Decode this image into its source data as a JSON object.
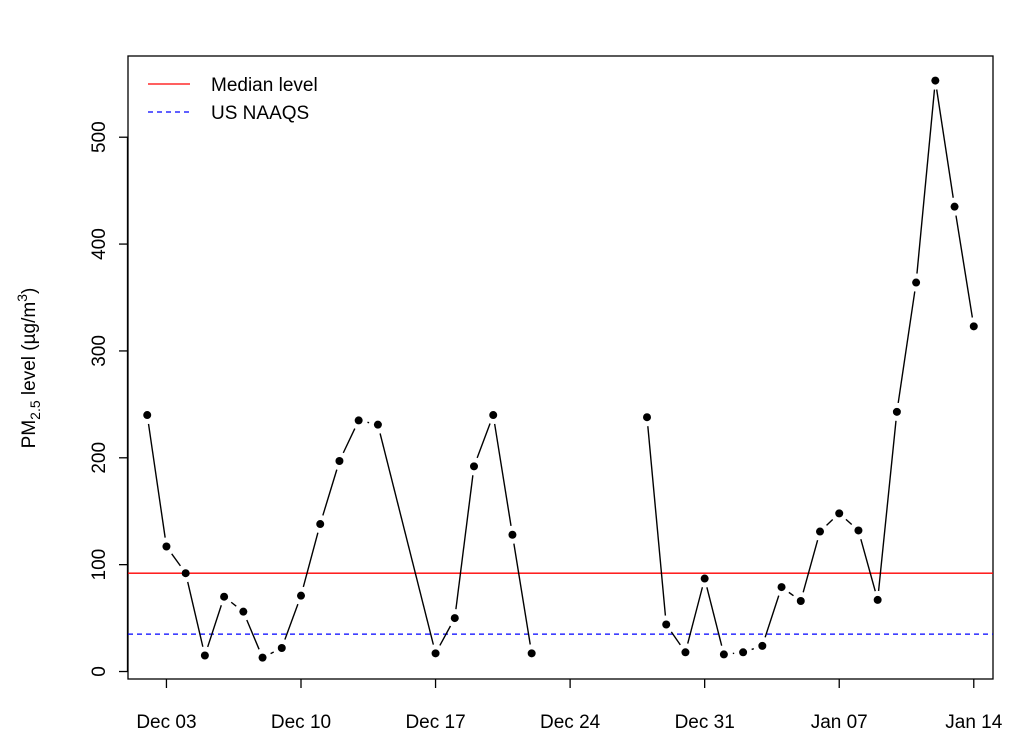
{
  "chart_data": {
    "type": "line",
    "ylabel": {
      "prefix": "PM",
      "subscript": "2.5",
      "middle": " level (µg/m",
      "superscript": "3",
      "suffix": ")"
    },
    "xlabel": "",
    "x_ticks": [
      "Dec 03",
      "Dec 10",
      "Dec 17",
      "Dec 24",
      "Dec 31",
      "Jan 07",
      "Jan 14"
    ],
    "y_ticks": [
      0,
      100,
      200,
      300,
      400,
      500
    ],
    "ylim": [
      -7,
      576
    ],
    "xlim": [
      "2012-12-01",
      "2013-01-15"
    ],
    "grid": false,
    "legend": {
      "position": "top-left",
      "entries": [
        "Median level",
        "US NAAQS"
      ]
    },
    "series": [
      {
        "name": "PM2.5",
        "color": "#000000",
        "points": [
          {
            "x": "2012-12-02",
            "y": 240
          },
          {
            "x": "2012-12-03",
            "y": 117
          },
          {
            "x": "2012-12-04",
            "y": 92
          },
          {
            "x": "2012-12-05",
            "y": 15
          },
          {
            "x": "2012-12-06",
            "y": 70
          },
          {
            "x": "2012-12-07",
            "y": 56
          },
          {
            "x": "2012-12-08",
            "y": 13
          },
          {
            "x": "2012-12-09",
            "y": 22
          },
          {
            "x": "2012-12-10",
            "y": 71
          },
          {
            "x": "2012-12-11",
            "y": 138
          },
          {
            "x": "2012-12-12",
            "y": 197
          },
          {
            "x": "2012-12-13",
            "y": 235
          },
          {
            "x": "2012-12-14",
            "y": 231
          },
          {
            "x": "2012-12-17",
            "y": 17
          },
          {
            "x": "2012-12-18",
            "y": 50
          },
          {
            "x": "2012-12-19",
            "y": 192
          },
          {
            "x": "2012-12-20",
            "y": 240
          },
          {
            "x": "2012-12-21",
            "y": 128
          },
          {
            "x": "2012-12-22",
            "y": 17
          },
          {
            "x": "2012-12-28",
            "y": 238
          },
          {
            "x": "2012-12-29",
            "y": 44
          },
          {
            "x": "2012-12-30",
            "y": 18
          },
          {
            "x": "2012-12-31",
            "y": 87
          },
          {
            "x": "2013-01-01",
            "y": 16
          },
          {
            "x": "2013-01-02",
            "y": 18
          },
          {
            "x": "2013-01-03",
            "y": 24
          },
          {
            "x": "2013-01-04",
            "y": 79
          },
          {
            "x": "2013-01-05",
            "y": 66
          },
          {
            "x": "2013-01-06",
            "y": 131
          },
          {
            "x": "2013-01-07",
            "y": 148
          },
          {
            "x": "2013-01-08",
            "y": 132
          },
          {
            "x": "2013-01-09",
            "y": 67
          },
          {
            "x": "2013-01-10",
            "y": 243
          },
          {
            "x": "2013-01-11",
            "y": 364
          },
          {
            "x": "2013-01-12",
            "y": 553
          },
          {
            "x": "2013-01-13",
            "y": 435
          },
          {
            "x": "2013-01-14",
            "y": 323
          }
        ]
      }
    ],
    "reference_lines": [
      {
        "name": "Median level",
        "y": 92,
        "color": "#ff0000",
        "style": "solid"
      },
      {
        "name": "US NAAQS",
        "y": 35,
        "color": "#0000ff",
        "style": "dashed"
      }
    ]
  }
}
